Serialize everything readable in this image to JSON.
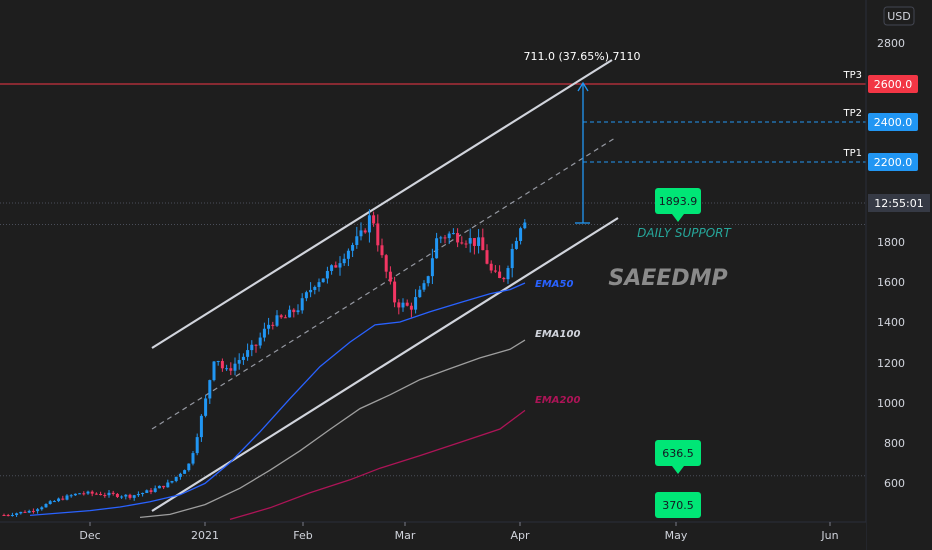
{
  "currency": "USD",
  "watermark": "SAEEDMP",
  "measure_label": "711.0 (37.65%) 7110",
  "daily_support_label": "DAILY SUPPORT",
  "chart_data": {
    "type": "candlestick",
    "y_axis": {
      "ylim": [
        420,
        3000
      ],
      "ticks": [
        600,
        800,
        1000,
        1200,
        1400,
        1600,
        1800,
        2000,
        2200,
        2400,
        2600,
        2800,
        3000
      ]
    },
    "x_axis": {
      "ticks": [
        "Dec",
        "2021",
        "Feb",
        "Mar",
        "Apr",
        "May",
        "Jun"
      ]
    },
    "series": [
      {
        "name": "EMA50",
        "color": "#2962ff",
        "points": [
          [
            30,
            438
          ],
          [
            60,
            450
          ],
          [
            90,
            462
          ],
          [
            120,
            480
          ],
          [
            150,
            506
          ],
          [
            180,
            541
          ],
          [
            205,
            598
          ],
          [
            230,
            702
          ],
          [
            260,
            856
          ],
          [
            290,
            1022
          ],
          [
            320,
            1182
          ],
          [
            350,
            1302
          ],
          [
            375,
            1386
          ],
          [
            400,
            1400
          ],
          [
            430,
            1451
          ],
          [
            460,
            1497
          ],
          [
            490,
            1541
          ],
          [
            510,
            1562
          ],
          [
            525,
            1595
          ]
        ]
      },
      {
        "name": "EMA100",
        "color": "#9e9e9e",
        "points": [
          [
            140,
            428
          ],
          [
            170,
            443
          ],
          [
            205,
            492
          ],
          [
            240,
            574
          ],
          [
            270,
            664
          ],
          [
            300,
            761
          ],
          [
            330,
            868
          ],
          [
            360,
            972
          ],
          [
            390,
            1041
          ],
          [
            420,
            1117
          ],
          [
            450,
            1172
          ],
          [
            480,
            1225
          ],
          [
            510,
            1267
          ],
          [
            525,
            1312
          ]
        ]
      },
      {
        "name": "EMA200",
        "color": "#ad1457",
        "points": [
          [
            230,
            418
          ],
          [
            270,
            476
          ],
          [
            310,
            551
          ],
          [
            350,
            616
          ],
          [
            380,
            674
          ],
          [
            420,
            737
          ],
          [
            460,
            803
          ],
          [
            500,
            870
          ],
          [
            525,
            963
          ]
        ]
      }
    ],
    "levels": [
      {
        "label": "TP3",
        "value": 2600.0,
        "color": "#f23645",
        "tag_text": "2600.0"
      },
      {
        "label": "TP2",
        "value": 2400.0,
        "color": "#2196f3",
        "tag_text": "2400.0"
      },
      {
        "label": "TP1",
        "value": 2200.0,
        "color": "#2196f3",
        "tag_text": "2200.0"
      }
    ],
    "current": {
      "value": 2000,
      "tag_text": "12:55:01"
    },
    "badges": [
      {
        "text": "1893.9",
        "color": "#00e676"
      },
      {
        "text": "636.5",
        "color": "#00e676"
      },
      {
        "text": "370.5",
        "color": "#00e676"
      }
    ]
  }
}
